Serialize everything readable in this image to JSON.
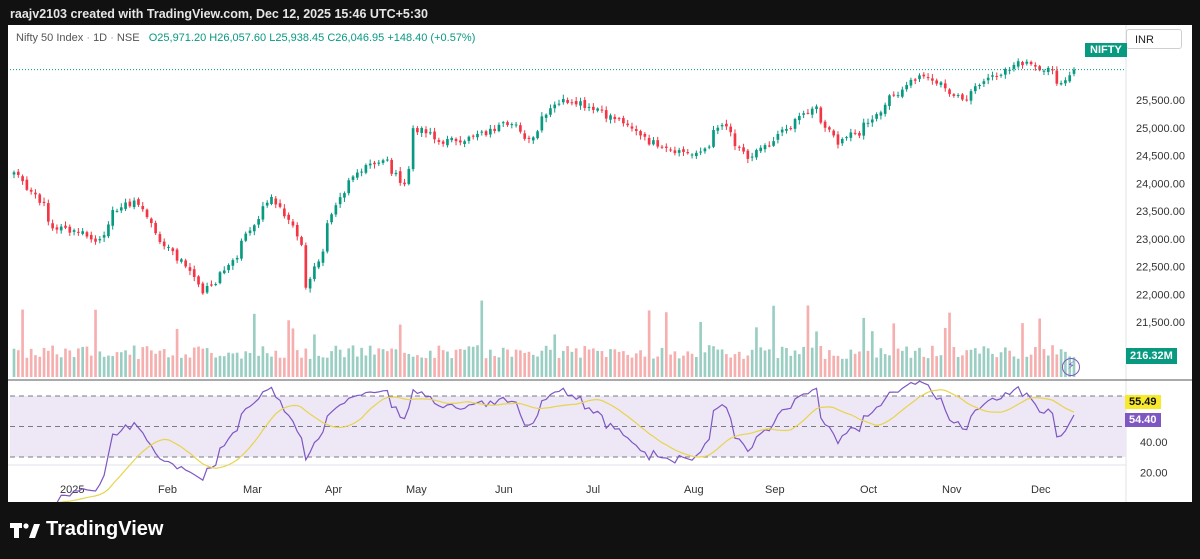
{
  "header": {
    "created_by": "raajv2103 created with TradingView.com, Dec 12, 2025 15:46 UTC+5:30"
  },
  "legend": {
    "symbol": "Nifty 50 Index",
    "interval": "1D",
    "exchange": "NSE",
    "open": "O25,971.20",
    "high": "H26,057.60",
    "low": "L25,938.45",
    "close": "C26,046.95",
    "change": "+148.40 (+0.57%)"
  },
  "currency": "INR",
  "price_tag": "NIFTY",
  "volume_tag": "216.32M",
  "rsi_tags": [
    "55.49",
    "54.40"
  ],
  "footer": {
    "logo_text": "TradingView"
  },
  "colors": {
    "up": "#089981",
    "down": "#f23645",
    "rsi": "#7e57c2",
    "rsi_ma": "#e8d44d",
    "rsi_band": "#ede7f6"
  },
  "chart_data": {
    "type": "candlestick",
    "price_axis": {
      "min": 21500,
      "max": 25500,
      "ticks": [
        "25,500.00",
        "25,000.00",
        "24,500.00",
        "24,000.00",
        "23,500.00",
        "23,000.00",
        "22,500.00",
        "22,000.00",
        "21,500.00"
      ]
    },
    "rsi_axis": {
      "ticks": [
        "40.00",
        "20.00"
      ],
      "bands": [
        70,
        50,
        30
      ]
    },
    "x_ticks": [
      "2025",
      "Feb",
      "Mar",
      "Apr",
      "May",
      "Jun",
      "Jul",
      "Aug",
      "Sep",
      "Oct",
      "Nov",
      "Dec"
    ],
    "anchors": [
      {
        "date": "2025-01-01",
        "close": 24200
      },
      {
        "date": "2025-01-08",
        "close": 23800
      },
      {
        "date": "2025-01-14",
        "close": 23200
      },
      {
        "date": "2025-01-22",
        "close": 23150
      },
      {
        "date": "2025-01-28",
        "close": 22950
      },
      {
        "date": "2025-02-04",
        "close": 23550
      },
      {
        "date": "2025-02-10",
        "close": 23700
      },
      {
        "date": "2025-02-18",
        "close": 22950
      },
      {
        "date": "2025-02-25",
        "close": 22600
      },
      {
        "date": "2025-03-04",
        "close": 22050
      },
      {
        "date": "2025-03-12",
        "close": 22500
      },
      {
        "date": "2025-03-20",
        "close": 23300
      },
      {
        "date": "2025-03-26",
        "close": 23700
      },
      {
        "date": "2025-04-01",
        "close": 23350
      },
      {
        "date": "2025-04-04",
        "close": 22900
      },
      {
        "date": "2025-04-07",
        "close": 22150
      },
      {
        "date": "2025-04-11",
        "close": 22800
      },
      {
        "date": "2025-04-17",
        "close": 23700
      },
      {
        "date": "2025-04-25",
        "close": 24350
      },
      {
        "date": "2025-05-02",
        "close": 24400
      },
      {
        "date": "2025-05-08",
        "close": 24000
      },
      {
        "date": "2025-05-12",
        "close": 25000
      },
      {
        "date": "2025-05-20",
        "close": 24750
      },
      {
        "date": "2025-05-28",
        "close": 24800
      },
      {
        "date": "2025-06-04",
        "close": 24900
      },
      {
        "date": "2025-06-10",
        "close": 25150
      },
      {
        "date": "2025-06-18",
        "close": 24800
      },
      {
        "date": "2025-06-26",
        "close": 25450
      },
      {
        "date": "2025-07-02",
        "close": 25500
      },
      {
        "date": "2025-07-10",
        "close": 25350
      },
      {
        "date": "2025-07-18",
        "close": 25100
      },
      {
        "date": "2025-07-28",
        "close": 24750
      },
      {
        "date": "2025-08-05",
        "close": 24600
      },
      {
        "date": "2025-08-12",
        "close": 24500
      },
      {
        "date": "2025-08-20",
        "close": 25050
      },
      {
        "date": "2025-08-28",
        "close": 24450
      },
      {
        "date": "2025-09-05",
        "close": 24700
      },
      {
        "date": "2025-09-12",
        "close": 25100
      },
      {
        "date": "2025-09-19",
        "close": 25350
      },
      {
        "date": "2025-09-26",
        "close": 24750
      },
      {
        "date": "2025-10-03",
        "close": 24900
      },
      {
        "date": "2025-10-10",
        "close": 25300
      },
      {
        "date": "2025-10-17",
        "close": 25700
      },
      {
        "date": "2025-10-24",
        "close": 25950
      },
      {
        "date": "2025-10-31",
        "close": 25750
      },
      {
        "date": "2025-11-06",
        "close": 25500
      },
      {
        "date": "2025-11-14",
        "close": 25900
      },
      {
        "date": "2025-11-21",
        "close": 26050
      },
      {
        "date": "2025-11-27",
        "close": 26200
      },
      {
        "date": "2025-12-04",
        "close": 26050
      },
      {
        "date": "2025-12-09",
        "close": 25800
      },
      {
        "date": "2025-12-12",
        "close": 26046.95
      }
    ]
  }
}
